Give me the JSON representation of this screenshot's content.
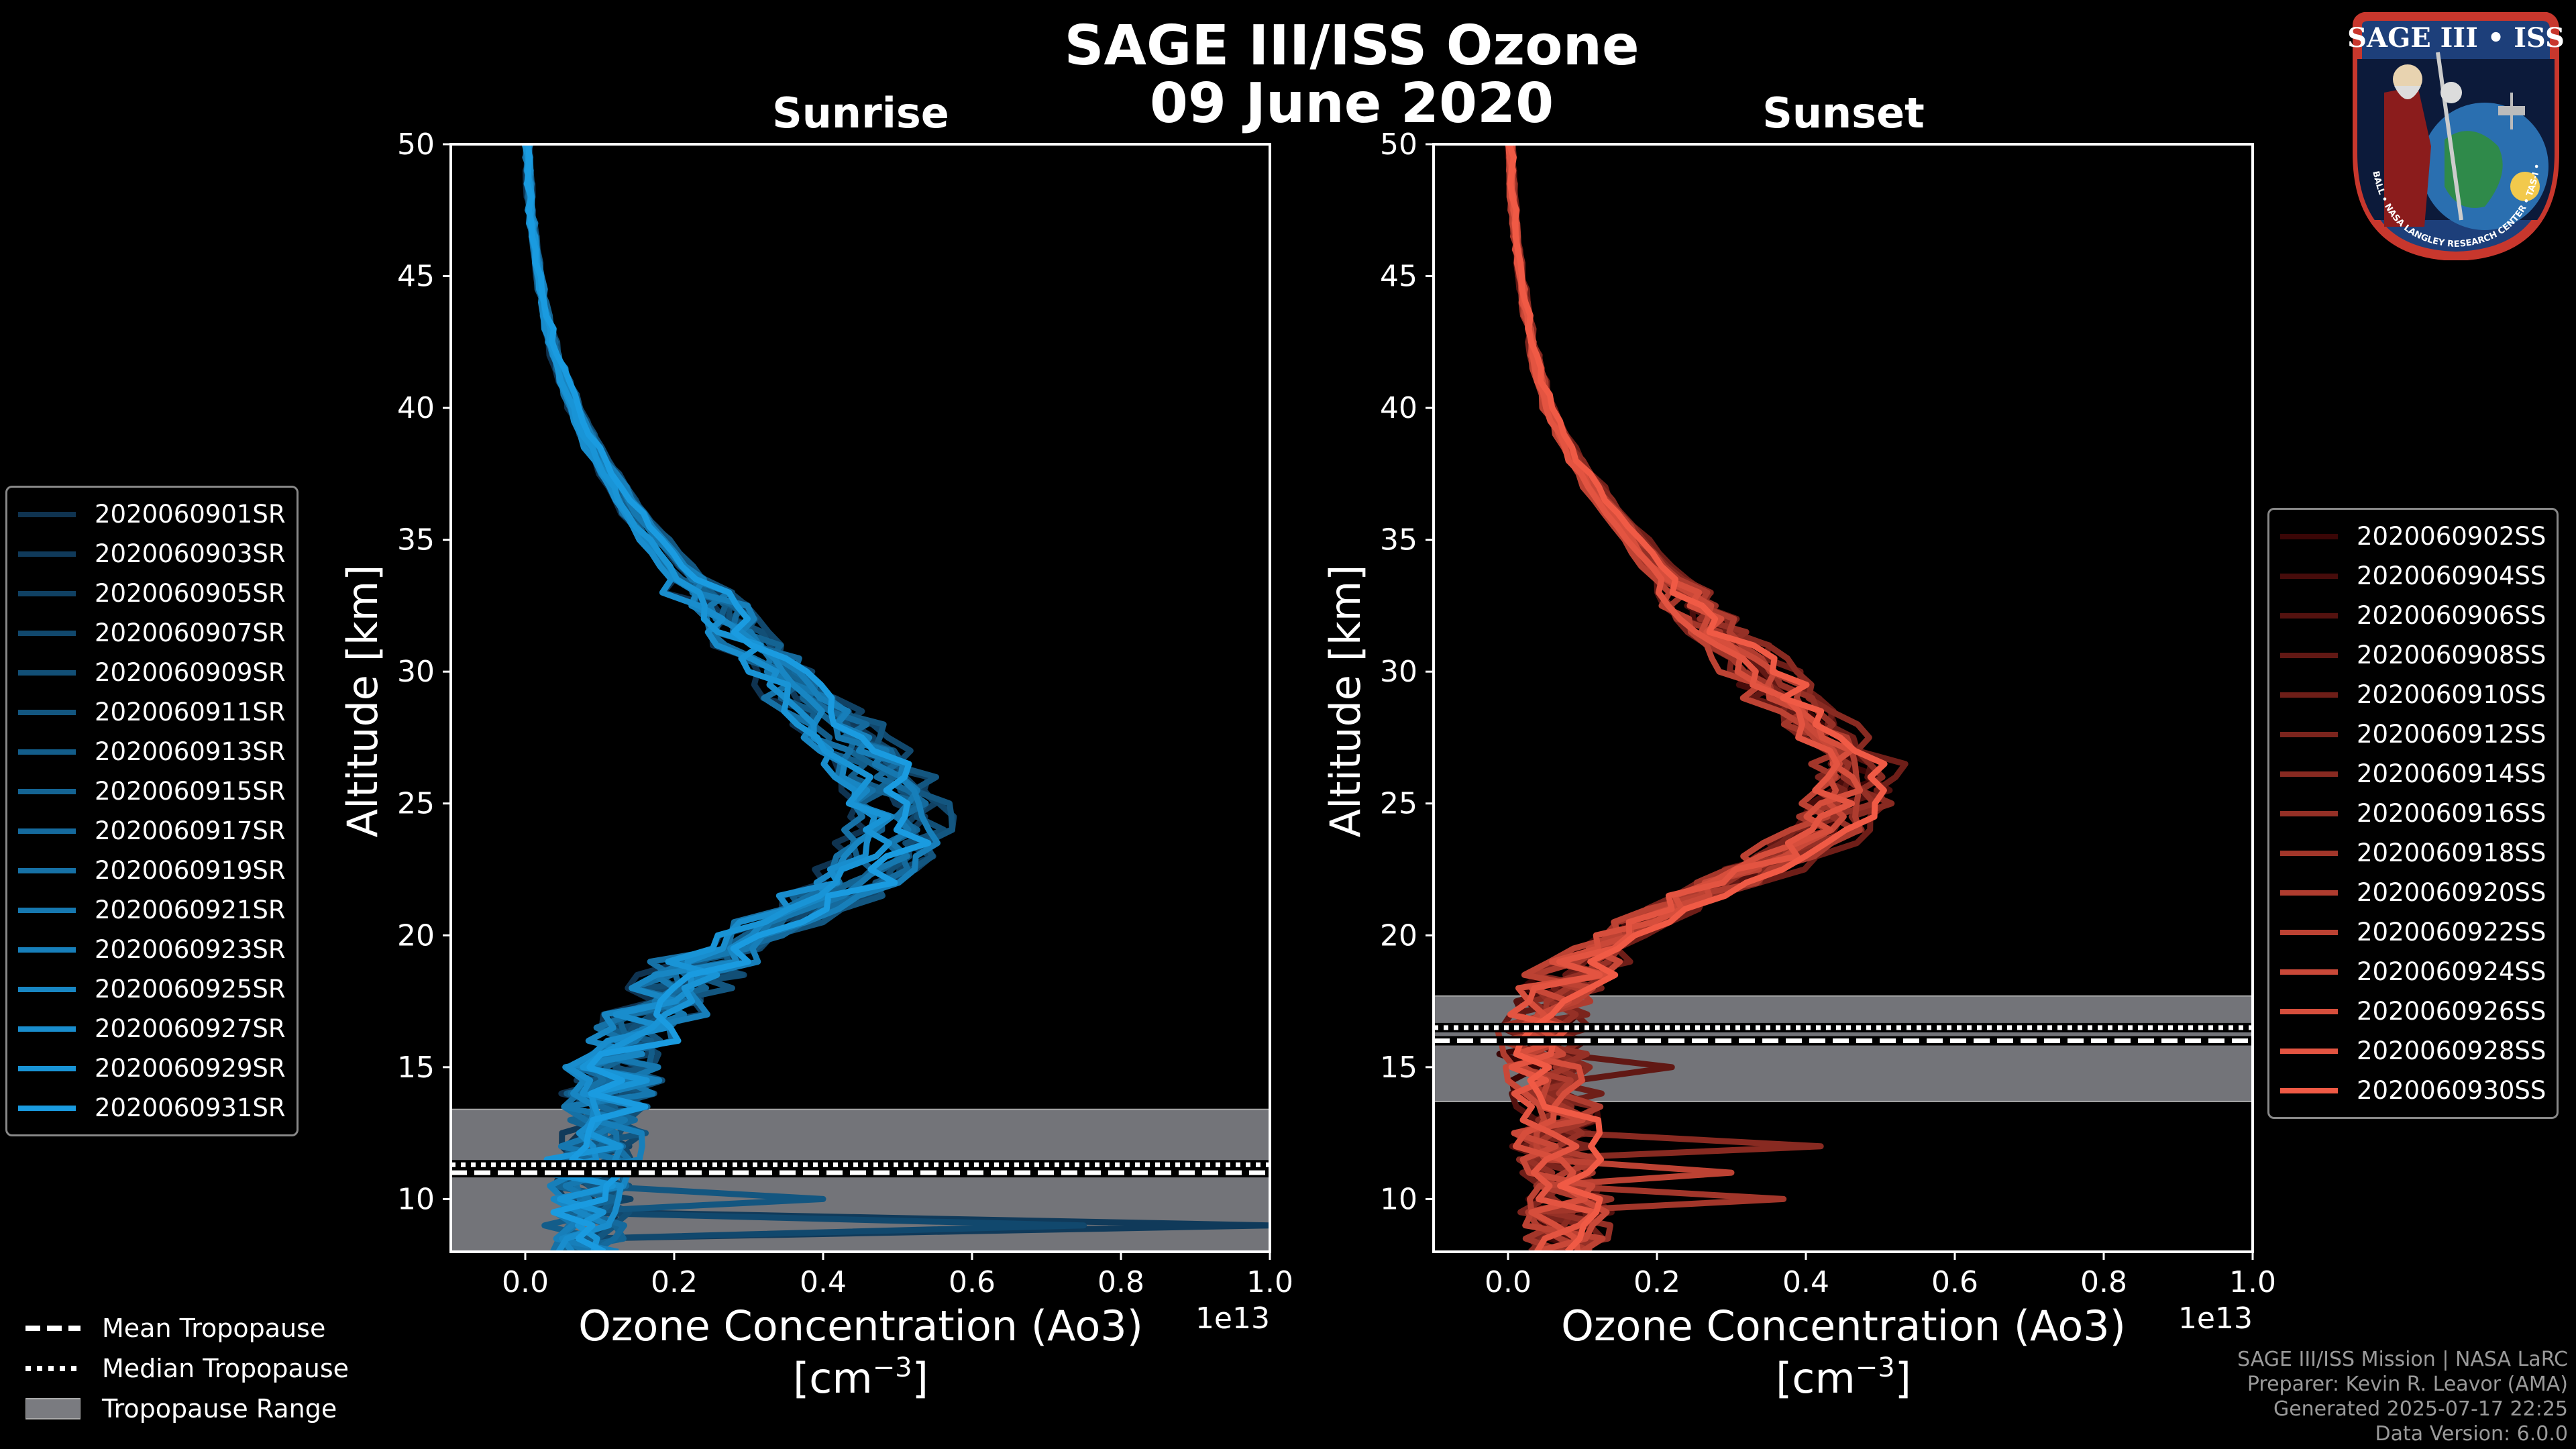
{
  "title_line1": "SAGE III/ISS Ozone",
  "title_line2": "09 June 2020",
  "logo": {
    "text": "SAGE III • ISS",
    "ring_text": "BALL • NASA LANGLEY RESEARCH CENTER • TAS-I • ESA"
  },
  "footer": {
    "line1": "SAGE III/ISS Mission | NASA LaRC",
    "line2": "Preparer: Kevin R. Leavor (AMA)",
    "line3": "Generated 2025-07-17 22:25",
    "line4": "Data Version: 6.0.0"
  },
  "bottom_legend": {
    "mean": "Mean Tropopause",
    "median": "Median Tropopause",
    "range": "Tropopause Range"
  },
  "chart_data": [
    {
      "type": "line",
      "title": "Sunrise",
      "xlabel_line1": "Ozone Concentration (Ao3)",
      "xlabel_line2": "[cm",
      "xlabel_sup": "−3",
      "xlabel_close": "]",
      "ylabel": "Altitude [km]",
      "offset_label": "1e13",
      "xlim": [
        -0.1,
        1.0
      ],
      "ylim": [
        8,
        50
      ],
      "xticks": [
        0.0,
        0.2,
        0.4,
        0.6,
        0.8,
        1.0
      ],
      "xtick_labels": [
        "0.0",
        "0.2",
        "0.4",
        "0.6",
        "0.8",
        "1.0"
      ],
      "yticks": [
        10,
        15,
        20,
        25,
        30,
        35,
        40,
        45,
        50
      ],
      "ytick_labels": [
        "10",
        "15",
        "20",
        "25",
        "30",
        "35",
        "40",
        "45",
        "50"
      ],
      "tropopause": {
        "mean": 11.0,
        "median": 11.3,
        "range": [
          8.0,
          13.4
        ]
      },
      "color_start": "#0f3350",
      "color_end": "#1a9be0",
      "mean_profile": [
        [
          50,
          0.003
        ],
        [
          48,
          0.006
        ],
        [
          46,
          0.013
        ],
        [
          44,
          0.024
        ],
        [
          42,
          0.04
        ],
        [
          40,
          0.065
        ],
        [
          38,
          0.1
        ],
        [
          36,
          0.145
        ],
        [
          34,
          0.2
        ],
        [
          32,
          0.27
        ],
        [
          30,
          0.34
        ],
        [
          28,
          0.41
        ],
        [
          26,
          0.47
        ],
        [
          24.5,
          0.495
        ],
        [
          23,
          0.48
        ],
        [
          22,
          0.44
        ],
        [
          21,
          0.37
        ],
        [
          20,
          0.3
        ],
        [
          19,
          0.24
        ],
        [
          18,
          0.2
        ],
        [
          17,
          0.17
        ],
        [
          16,
          0.15
        ],
        [
          15,
          0.12
        ],
        [
          14,
          0.11
        ],
        [
          13,
          0.1
        ],
        [
          12,
          0.09
        ],
        [
          11,
          0.085
        ],
        [
          10,
          0.08
        ],
        [
          9,
          0.075
        ],
        [
          8,
          0.07
        ]
      ],
      "series": [
        {
          "name": "2020060901SR"
        },
        {
          "name": "2020060903SR"
        },
        {
          "name": "2020060905SR"
        },
        {
          "name": "2020060907SR"
        },
        {
          "name": "2020060909SR"
        },
        {
          "name": "2020060911SR"
        },
        {
          "name": "2020060913SR"
        },
        {
          "name": "2020060915SR"
        },
        {
          "name": "2020060917SR"
        },
        {
          "name": "2020060919SR"
        },
        {
          "name": "2020060921SR"
        },
        {
          "name": "2020060923SR"
        },
        {
          "name": "2020060925SR"
        },
        {
          "name": "2020060927SR"
        },
        {
          "name": "2020060929SR"
        },
        {
          "name": "2020060931SR"
        }
      ],
      "spikes": [
        {
          "series": 1,
          "alt": 9.1,
          "x": 1.0
        },
        {
          "series": 3,
          "alt": 8.8,
          "x": 0.75
        },
        {
          "series": 5,
          "alt": 10.0,
          "x": 0.4
        }
      ]
    },
    {
      "type": "line",
      "title": "Sunset",
      "xlabel_line1": "Ozone Concentration (Ao3)",
      "xlabel_line2": "[cm",
      "xlabel_sup": "−3",
      "xlabel_close": "]",
      "ylabel": "Altitude [km]",
      "offset_label": "1e13",
      "xlim": [
        -0.1,
        1.0
      ],
      "ylim": [
        8,
        50
      ],
      "xticks": [
        0.0,
        0.2,
        0.4,
        0.6,
        0.8,
        1.0
      ],
      "xtick_labels": [
        "0.0",
        "0.2",
        "0.4",
        "0.6",
        "0.8",
        "1.0"
      ],
      "yticks": [
        10,
        15,
        20,
        25,
        30,
        35,
        40,
        45,
        50
      ],
      "ytick_labels": [
        "10",
        "15",
        "20",
        "25",
        "30",
        "35",
        "40",
        "45",
        "50"
      ],
      "tropopause": {
        "mean": 16.0,
        "median": 16.5,
        "range": [
          13.7,
          17.7
        ]
      },
      "color_start": "#3a0606",
      "color_end": "#f05a45",
      "mean_profile": [
        [
          50,
          0.003
        ],
        [
          48,
          0.006
        ],
        [
          46,
          0.012
        ],
        [
          44,
          0.022
        ],
        [
          42,
          0.035
        ],
        [
          40,
          0.055
        ],
        [
          38,
          0.09
        ],
        [
          36,
          0.14
        ],
        [
          34,
          0.2
        ],
        [
          32,
          0.27
        ],
        [
          30,
          0.34
        ],
        [
          28,
          0.41
        ],
        [
          27,
          0.45
        ],
        [
          26,
          0.47
        ],
        [
          25,
          0.46
        ],
        [
          24,
          0.43
        ],
        [
          23,
          0.38
        ],
        [
          22,
          0.3
        ],
        [
          21,
          0.22
        ],
        [
          20,
          0.15
        ],
        [
          19,
          0.1
        ],
        [
          18,
          0.07
        ],
        [
          17,
          0.05
        ],
        [
          16,
          0.045
        ],
        [
          15,
          0.05
        ],
        [
          14,
          0.06
        ],
        [
          13,
          0.07
        ],
        [
          12,
          0.06
        ],
        [
          11,
          0.07
        ],
        [
          10,
          0.08
        ],
        [
          9,
          0.08
        ],
        [
          8,
          0.08
        ]
      ],
      "series": [
        {
          "name": "2020060902SS"
        },
        {
          "name": "2020060904SS"
        },
        {
          "name": "2020060906SS"
        },
        {
          "name": "2020060908SS"
        },
        {
          "name": "2020060910SS"
        },
        {
          "name": "2020060912SS"
        },
        {
          "name": "2020060914SS"
        },
        {
          "name": "2020060916SS"
        },
        {
          "name": "2020060918SS"
        },
        {
          "name": "2020060920SS"
        },
        {
          "name": "2020060922SS"
        },
        {
          "name": "2020060924SS"
        },
        {
          "name": "2020060926SS"
        },
        {
          "name": "2020060928SS"
        },
        {
          "name": "2020060930SS"
        }
      ],
      "spikes": [
        {
          "series": 6,
          "alt": 12.1,
          "x": 0.42
        },
        {
          "series": 8,
          "alt": 9.9,
          "x": 0.37
        },
        {
          "series": 3,
          "alt": 15.0,
          "x": 0.22
        },
        {
          "series": 10,
          "alt": 11.0,
          "x": 0.3
        }
      ]
    }
  ]
}
